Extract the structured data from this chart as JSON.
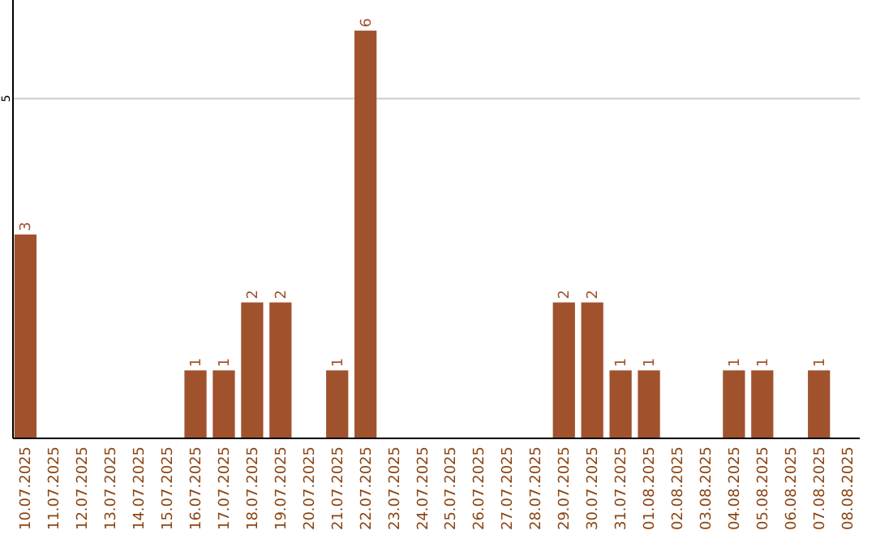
{
  "chart_data": {
    "type": "bar",
    "categories": [
      "10.07.2025",
      "11.07.2025",
      "12.07.2025",
      "13.07.2025",
      "14.07.2025",
      "15.07.2025",
      "16.07.2025",
      "17.07.2025",
      "18.07.2025",
      "19.07.2025",
      "20.07.2025",
      "21.07.2025",
      "22.07.2025",
      "23.07.2025",
      "24.07.2025",
      "25.07.2025",
      "26.07.2025",
      "27.07.2025",
      "28.07.2025",
      "29.07.2025",
      "30.07.2025",
      "31.07.2025",
      "01.08.2025",
      "02.08.2025",
      "03.08.2025",
      "04.08.2025",
      "05.08.2025",
      "06.08.2025",
      "07.08.2025",
      "08.08.2025"
    ],
    "values": [
      3,
      0,
      0,
      0,
      0,
      0,
      1,
      1,
      2,
      2,
      0,
      1,
      6,
      0,
      0,
      0,
      0,
      0,
      0,
      2,
      2,
      1,
      1,
      0,
      0,
      1,
      1,
      0,
      1,
      0
    ],
    "value_labels": [
      "3",
      null,
      null,
      null,
      null,
      null,
      "1",
      "1",
      "2",
      "2",
      null,
      "1",
      "6",
      null,
      null,
      null,
      null,
      null,
      null,
      "2",
      "2",
      "1",
      "1",
      null,
      null,
      "1",
      "1",
      null,
      "1",
      null
    ],
    "color": "#a0522d",
    "ylim": [
      0,
      6.45
    ],
    "yticks": [
      5
    ],
    "grid": "y"
  }
}
